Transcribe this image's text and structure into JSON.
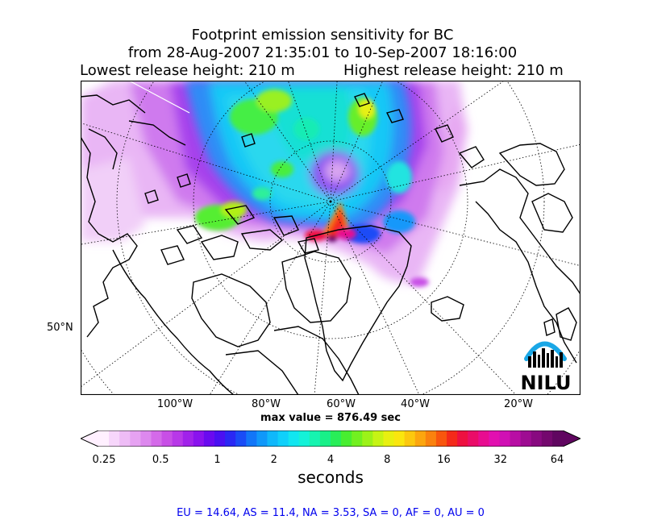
{
  "title": {
    "line1": "Footprint emission sensitivity for BC",
    "line2": "from 28-Aug-2007 21:35:01 to 10-Sep-2007 18:16:00",
    "lowest": "Lowest release height: 210 m",
    "highest": "Highest release height: 210 m"
  },
  "map": {
    "projection": "polar stereographic (north)",
    "lon_labels": [
      "100°W",
      "80°W",
      "60°W",
      "40°W",
      "20°W"
    ],
    "lat_labels": [
      "50°N"
    ],
    "logo_text": "NILU",
    "logo_icon": "nilu-logo-icon",
    "max_value_text": "max value = 876.49 sec"
  },
  "colorbar": {
    "tick_labels": [
      "0.25",
      "0.5",
      "1",
      "2",
      "4",
      "8",
      "16",
      "32",
      "64"
    ],
    "unit_label": "seconds",
    "colors": [
      "#fff0ff",
      "#f7d6fb",
      "#eebcf6",
      "#e6a2f2",
      "#dd88ee",
      "#d46ae9",
      "#c84fe6",
      "#b838e8",
      "#a122ea",
      "#8a12ee",
      "#6a0af0",
      "#4a10f2",
      "#2a28f4",
      "#1a4cf6",
      "#1276f8",
      "#1098fa",
      "#10b8fb",
      "#10d0fa",
      "#12e6f0",
      "#14f2d8",
      "#16f4b0",
      "#18f088",
      "#28ee58",
      "#48ee30",
      "#72f020",
      "#9cf218",
      "#c6f414",
      "#e8f010",
      "#fae60e",
      "#fcc80e",
      "#fca60e",
      "#fa820e",
      "#f8560e",
      "#f42a1a",
      "#ee1040",
      "#ea0c68",
      "#e80c90",
      "#e210b0",
      "#d010b4",
      "#b80ea4",
      "#9e0c92",
      "#880a80",
      "#74086e",
      "#600660"
    ]
  },
  "stats_text": "EU = 14.64,  AS = 11.4,  NA = 3.53,  SA = 0,  AF = 0,  AU = 0"
}
